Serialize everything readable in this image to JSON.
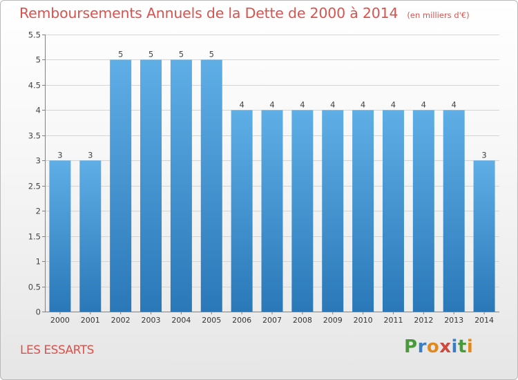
{
  "title": "Remboursements Annuels de la Dette de 2000 à 2014",
  "subtitle": "(en milliers d'€)",
  "commune": "LES ESSARTS",
  "logo": {
    "text": "Proxiti",
    "colors": [
      "#4a9a3c",
      "#3a7fc2",
      "#e08a1e",
      "#d0483d",
      "#3a7fc2",
      "#4a9a3c",
      "#e08a1e"
    ]
  },
  "colors": {
    "bar_top": "#5faee6",
    "bar_bottom": "#2a78b8",
    "accent": "#d8534e"
  },
  "chart_data": {
    "type": "bar",
    "categories": [
      "2000",
      "2001",
      "2002",
      "2003",
      "2004",
      "2005",
      "2006",
      "2007",
      "2008",
      "2009",
      "2010",
      "2011",
      "2012",
      "2013",
      "2014"
    ],
    "values": [
      3,
      3,
      5,
      5,
      5,
      5,
      4,
      4,
      4,
      4,
      4,
      4,
      4,
      4,
      3
    ],
    "data_labels": [
      "3",
      "3",
      "5",
      "5",
      "5",
      "5",
      "4",
      "4",
      "4",
      "4",
      "4",
      "4",
      "4",
      "4",
      "3"
    ],
    "y_ticks": [
      0,
      0.5,
      1,
      1.5,
      2,
      2.5,
      3,
      3.5,
      4,
      4.5,
      5,
      5.5
    ],
    "y_tick_labels": [
      "0",
      "0.5",
      "1",
      "1.5",
      "2",
      "2.5",
      "3",
      "3.5",
      "4",
      "4.5",
      "5",
      "5.5"
    ],
    "ylim": [
      0,
      5.5
    ],
    "grid": true,
    "xlabel": "",
    "ylabel": ""
  }
}
